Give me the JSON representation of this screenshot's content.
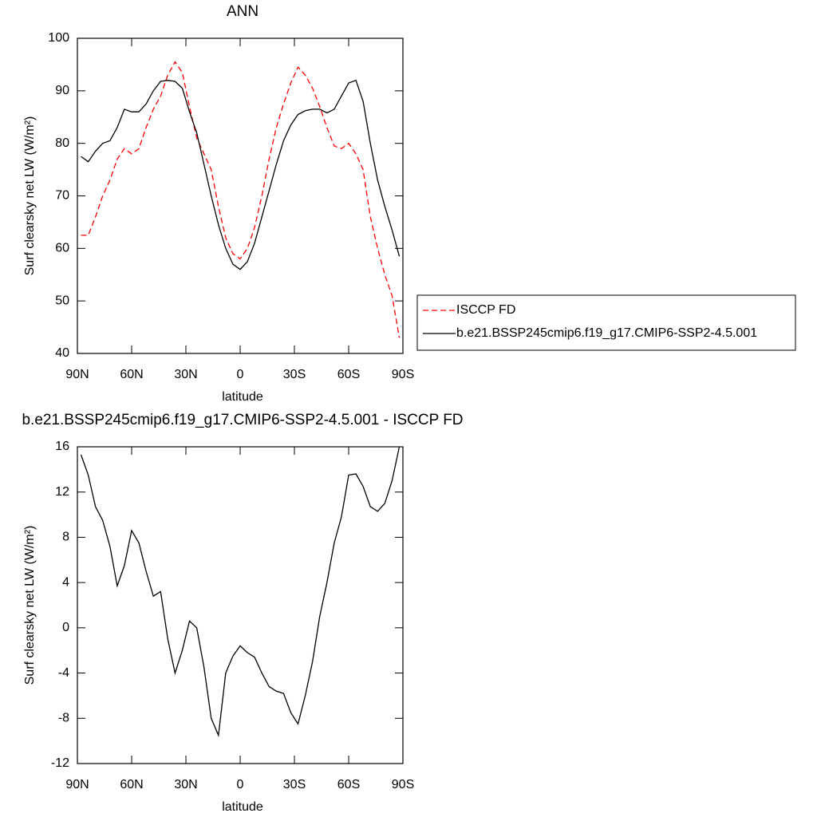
{
  "chart_data": [
    {
      "type": "line",
      "title": "ANN",
      "x_label": "latitude",
      "y_label": "Surf clearsky net LW (W/m²)",
      "x": [
        88,
        84,
        80,
        76,
        72,
        68,
        64,
        60,
        56,
        52,
        48,
        44,
        40,
        36,
        32,
        28,
        24,
        20,
        16,
        12,
        8,
        4,
        0,
        -4,
        -8,
        -12,
        -16,
        -20,
        -24,
        -28,
        -32,
        -36,
        -40,
        -44,
        -48,
        -52,
        -56,
        -60,
        -64,
        -68,
        -72,
        -76,
        -80,
        -84,
        -88
      ],
      "series": [
        {
          "name": "ISCCP FD",
          "color": "#ff0000",
          "line_style": "dashed",
          "values": [
            62.5,
            62.5,
            66,
            70,
            73,
            77,
            79,
            78,
            79,
            83,
            86.5,
            89,
            93,
            95.5,
            93.5,
            87,
            81,
            78,
            75,
            68,
            62,
            59,
            58,
            60,
            64,
            70,
            77,
            83,
            87.5,
            91.5,
            94.5,
            93,
            90.5,
            87,
            83,
            79.5,
            79,
            80,
            78,
            75,
            66,
            60,
            55,
            51,
            43
          ]
        },
        {
          "name": "b.e21.BSSP245cmip6.f19_g17.CMIP6-SSP2-4.5.001",
          "color": "#000000",
          "line_style": "solid",
          "values": [
            77.5,
            76.5,
            78.5,
            80,
            80.5,
            83,
            86.5,
            86,
            86,
            87.5,
            90,
            91.8,
            92,
            91.8,
            90.5,
            86,
            82,
            76,
            70,
            64.5,
            60,
            57,
            56,
            57.5,
            61,
            66,
            71,
            76,
            80.5,
            83.5,
            85.5,
            86.2,
            86.5,
            86.5,
            85.8,
            86.5,
            89,
            91.5,
            92,
            88,
            80,
            73,
            68,
            63.5,
            58.5
          ]
        }
      ],
      "xlim": [
        90,
        -90
      ],
      "xticks": [
        {
          "value": 90,
          "label": "90N"
        },
        {
          "value": 60,
          "label": "60N"
        },
        {
          "value": 30,
          "label": "30N"
        },
        0,
        {
          "value": -30,
          "label": "30S"
        },
        {
          "value": -60,
          "label": "60S"
        },
        {
          "value": -90,
          "label": "90S"
        }
      ],
      "ylim": [
        40,
        100
      ],
      "yticks": [
        40,
        50,
        60,
        70,
        80,
        90,
        100
      ],
      "legend": "right"
    },
    {
      "type": "line",
      "title": "b.e21.BSSP245cmip6.f19_g17.CMIP6-SSP2-4.5.001 - ISCCP FD",
      "x_label": "latitude",
      "y_label": "Surf clearsky net LW (W/m²)",
      "x": [
        88,
        84,
        80,
        76,
        72,
        68,
        64,
        60,
        56,
        52,
        48,
        44,
        40,
        36,
        32,
        28,
        24,
        20,
        16,
        12,
        8,
        4,
        0,
        -4,
        -8,
        -12,
        -16,
        -20,
        -24,
        -28,
        -32,
        -36,
        -40,
        -44,
        -48,
        -52,
        -56,
        -60,
        -64,
        -68,
        -72,
        -76,
        -80,
        -84,
        -88
      ],
      "values": [
        15.3,
        13.5,
        10.7,
        9.5,
        7.2,
        3.7,
        5.5,
        8.6,
        7.5,
        5,
        2.8,
        3.2,
        -1,
        -4,
        -2,
        0.6,
        0,
        -3.5,
        -8,
        -9.5,
        -4,
        -2.5,
        -1.6,
        -2.2,
        -2.6,
        -4,
        -5.2,
        -5.6,
        -5.8,
        -7.5,
        -8.5,
        -6,
        -3,
        1,
        4,
        7.5,
        9.8,
        13.5,
        13.6,
        12.5,
        10.7,
        10.3,
        11,
        13,
        16
      ],
      "color": "#000000",
      "xlim": [
        90,
        -90
      ],
      "xticks": [
        {
          "value": 90,
          "label": "90N"
        },
        {
          "value": 60,
          "label": "60N"
        },
        {
          "value": 30,
          "label": "30N"
        },
        0,
        {
          "value": -30,
          "label": "30S"
        },
        {
          "value": -60,
          "label": "60S"
        },
        {
          "value": -90,
          "label": "90S"
        }
      ],
      "ylim": [
        -12,
        16
      ],
      "yticks": [
        -12,
        -8,
        -4,
        0,
        4,
        8,
        12,
        16
      ]
    }
  ]
}
